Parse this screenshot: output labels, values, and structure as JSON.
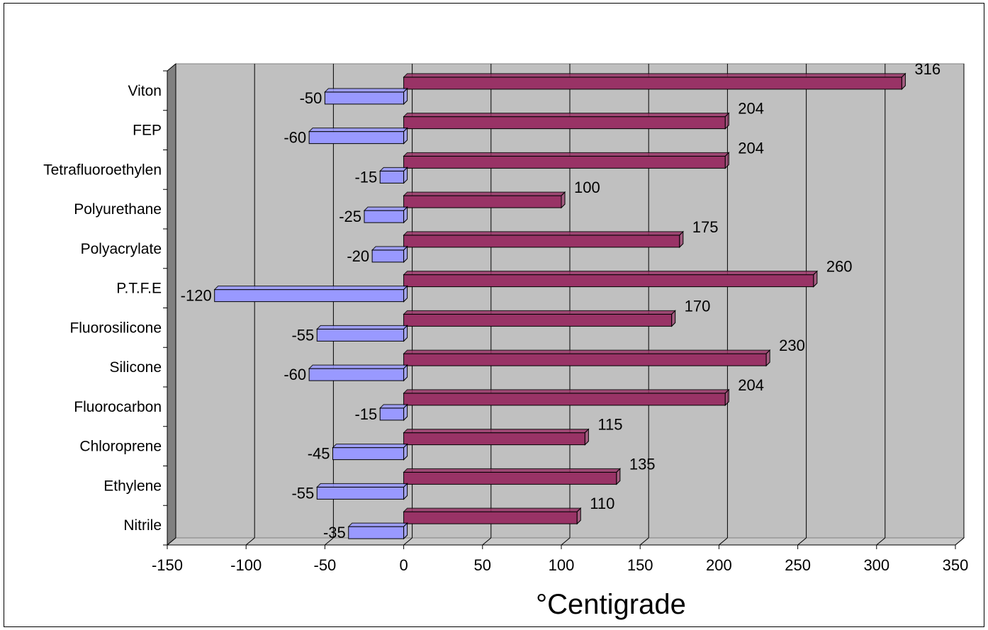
{
  "chart_data": {
    "type": "bar",
    "orientation": "horizontal",
    "categories": [
      "Viton",
      "FEP",
      "Tetrafluoroethylen",
      "Polyurethane",
      "Polyacrylate",
      "P.T.F.E",
      "Fluorosilicone",
      "Silicone",
      "Fluorocarbon",
      "Chloroprene",
      "Ethylene",
      "Nitrile"
    ],
    "series": [
      {
        "values": [
          -50,
          -60,
          -15,
          -25,
          -20,
          -120,
          -55,
          -60,
          -15,
          -45,
          -55,
          -35
        ],
        "color": "#9999FF"
      },
      {
        "values": [
          316,
          204,
          204,
          100,
          175,
          260,
          170,
          230,
          204,
          115,
          135,
          110
        ],
        "color": "#993366"
      }
    ],
    "x_ticks": [
      -150,
      -100,
      -50,
      0,
      50,
      100,
      150,
      200,
      250,
      300,
      350
    ],
    "xlim": [
      -150,
      350
    ],
    "xlabel": "°Centigrade",
    "ylabel": "",
    "title": "",
    "grid": "vertical gridlines",
    "legend": "none",
    "plot_background": "#C0C0C0",
    "style": "3d"
  }
}
